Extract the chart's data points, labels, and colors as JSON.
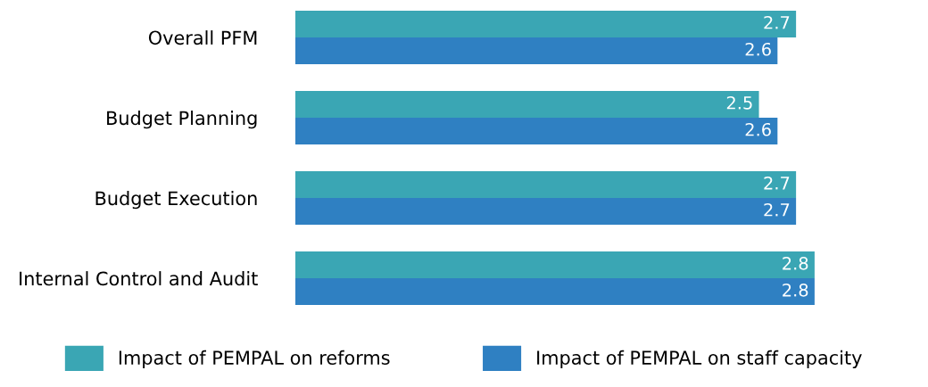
{
  "chart_data": {
    "type": "bar",
    "orientation": "horizontal",
    "categories": [
      "Overall PFM",
      "Budget Planning",
      "Budget Execution",
      "Internal Control and Audit"
    ],
    "series": [
      {
        "name": "Impact of PEMPAL on reforms",
        "color": "#3aa6b4",
        "values": [
          2.7,
          2.5,
          2.7,
          2.8
        ]
      },
      {
        "name": "Impact of PEMPAL on staff capacity",
        "color": "#2f80c2",
        "values": [
          2.6,
          2.6,
          2.7,
          2.8
        ]
      }
    ],
    "data_labels": true,
    "tick_labels": "y",
    "grid": false,
    "legend": "bottom"
  }
}
